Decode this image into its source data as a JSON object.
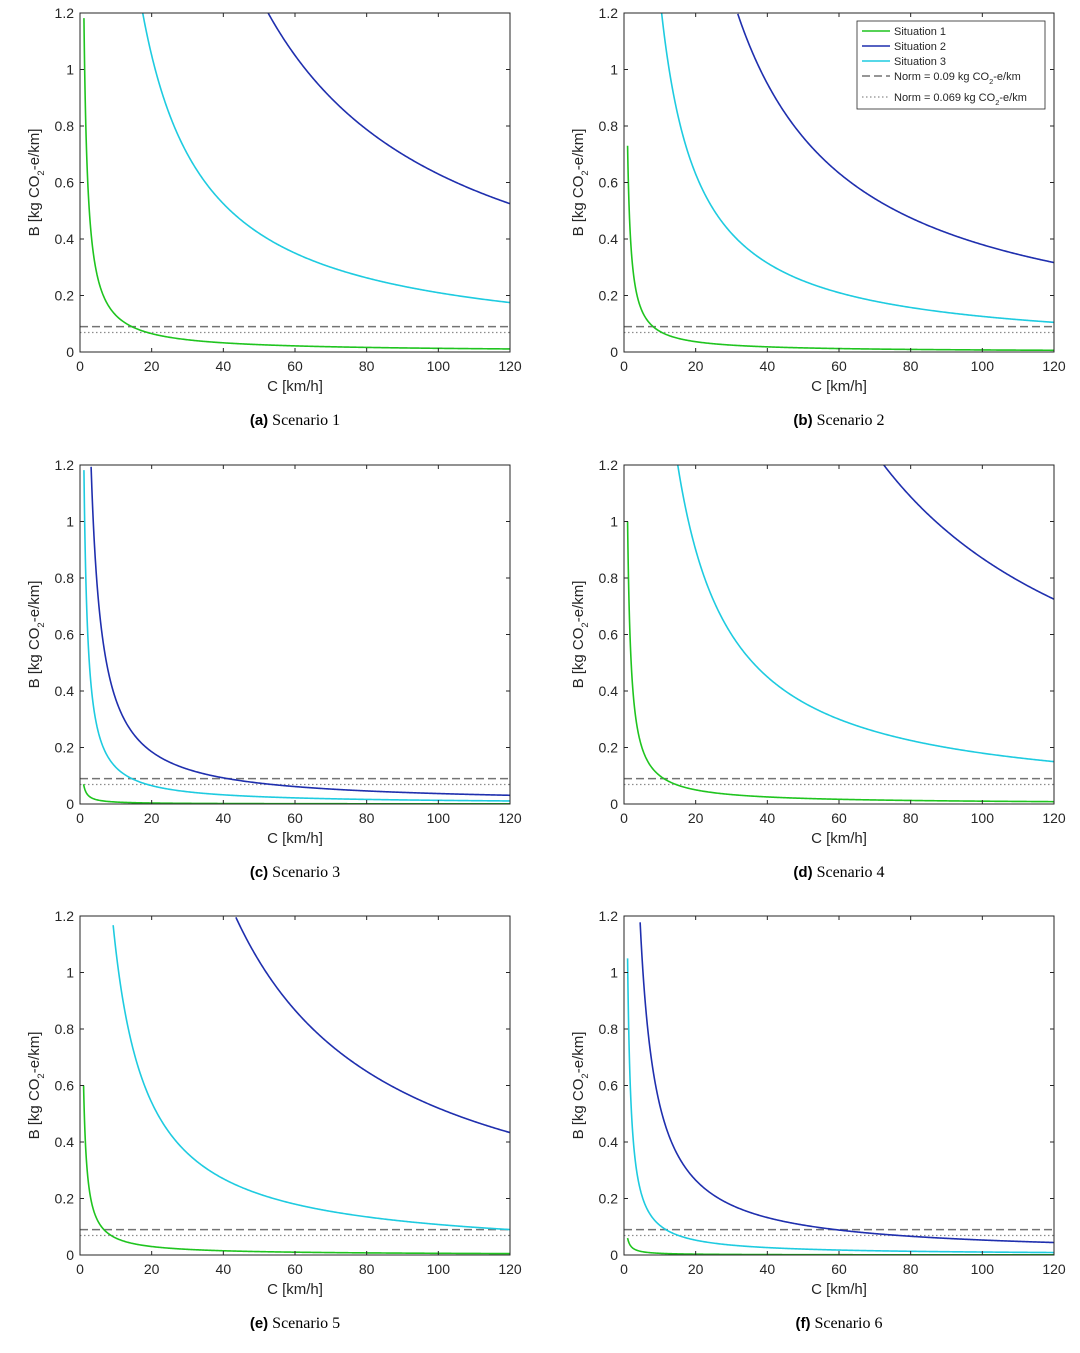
{
  "figure": {
    "xlabel": "C [km/h]",
    "ylabel_prefix": "B [kg CO",
    "ylabel_sub": "2",
    "ylabel_suffix": "-e/km]",
    "xlim": [
      0,
      120
    ],
    "ylim": [
      0,
      1.2
    ],
    "xticks": [
      "0",
      "20",
      "40",
      "60",
      "80",
      "100",
      "120"
    ],
    "yticks": [
      "0",
      "0.2",
      "0.4",
      "0.6",
      "0.8",
      "1",
      "1.2"
    ]
  },
  "legend": {
    "entries": [
      {
        "prefix": "Situation 1",
        "sub": "",
        "suffix": ""
      },
      {
        "prefix": "Situation 2",
        "sub": "",
        "suffix": ""
      },
      {
        "prefix": "Situation 3",
        "sub": "",
        "suffix": ""
      },
      {
        "prefix": "Norm = 0.09 kg CO",
        "sub": "2",
        "suffix": "-e/km"
      },
      {
        "prefix": "Norm = 0.069 kg CO",
        "sub": "2",
        "suffix": "-e/km"
      }
    ]
  },
  "colors": {
    "situation1": "#1fc41f",
    "situation2": "#1f2fae",
    "situation3": "#1ecbe0",
    "norm1": "#737373",
    "norm2": "#8c8c8c",
    "axis": "#262626"
  },
  "chart_data": [
    {
      "type": "line",
      "caption_letter": "(a)",
      "caption_text": "Scenario 1",
      "xlabel": "C [km/h]",
      "ylabel": "B [kg CO2-e/km]",
      "xlim": [
        0,
        120
      ],
      "ylim": [
        0,
        1.2
      ],
      "series": [
        {
          "name": "Situation 1",
          "k": 1.3
        },
        {
          "name": "Situation 2",
          "k": 63
        },
        {
          "name": "Situation 3",
          "k": 21
        }
      ],
      "norms": [
        0.09,
        0.069
      ]
    },
    {
      "type": "line",
      "caption_letter": "(b)",
      "caption_text": "Scenario 2",
      "xlabel": "C [km/h]",
      "ylabel": "B [kg CO2-e/km]",
      "xlim": [
        0,
        120
      ],
      "ylim": [
        0,
        1.2
      ],
      "series": [
        {
          "name": "Situation 1",
          "k": 0.73
        },
        {
          "name": "Situation 2",
          "k": 38
        },
        {
          "name": "Situation 3",
          "k": 12.6
        }
      ],
      "norms": [
        0.09,
        0.069
      ]
    },
    {
      "type": "line",
      "caption_letter": "(c)",
      "caption_text": "Scenario 3",
      "xlabel": "C [km/h]",
      "ylabel": "B [kg CO2-e/km]",
      "xlim": [
        0,
        120
      ],
      "ylim": [
        0,
        1.2
      ],
      "series": [
        {
          "name": "Situation 1",
          "k": 0.07
        },
        {
          "name": "Situation 2",
          "k": 3.7
        },
        {
          "name": "Situation 3",
          "k": 1.3
        }
      ],
      "norms": [
        0.09,
        0.069
      ]
    },
    {
      "type": "line",
      "caption_letter": "(d)",
      "caption_text": "Scenario 4",
      "xlabel": "C [km/h]",
      "ylabel": "B [kg CO2-e/km]",
      "xlim": [
        0,
        120
      ],
      "ylim": [
        0,
        1.2
      ],
      "series": [
        {
          "name": "Situation 1",
          "k": 1.0
        },
        {
          "name": "Situation 2",
          "k": 87
        },
        {
          "name": "Situation 3",
          "k": 18
        }
      ],
      "norms": [
        0.09,
        0.069
      ]
    },
    {
      "type": "line",
      "caption_letter": "(e)",
      "caption_text": "Scenario 5",
      "xlabel": "C [km/h]",
      "ylabel": "B [kg CO2-e/km]",
      "xlim": [
        0,
        120
      ],
      "ylim": [
        0,
        1.2
      ],
      "series": [
        {
          "name": "Situation 1",
          "k": 0.6
        },
        {
          "name": "Situation 2",
          "k": 52
        },
        {
          "name": "Situation 3",
          "k": 10.8
        }
      ],
      "norms": [
        0.09,
        0.069
      ]
    },
    {
      "type": "line",
      "caption_letter": "(f)",
      "caption_text": "Scenario 6",
      "xlabel": "C [km/h]",
      "ylabel": "B [kg CO2-e/km]",
      "xlim": [
        0,
        120
      ],
      "ylim": [
        0,
        1.2
      ],
      "series": [
        {
          "name": "Situation 1",
          "k": 0.06
        },
        {
          "name": "Situation 2",
          "k": 5.3
        },
        {
          "name": "Situation 3",
          "k": 1.05
        }
      ],
      "norms": [
        0.09,
        0.069
      ]
    }
  ]
}
